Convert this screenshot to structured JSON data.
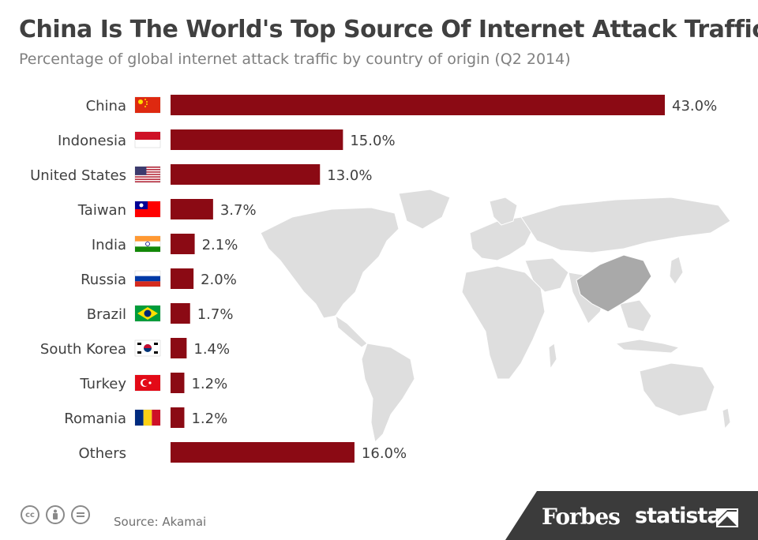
{
  "header": {
    "title": "China Is The World's Top Source Of Internet Attack Traffic",
    "subtitle": "Percentage of global internet attack traffic by country of origin (Q2 2014)"
  },
  "chart_data": {
    "type": "bar",
    "orientation": "horizontal",
    "categories": [
      "China",
      "Indonesia",
      "United States",
      "Taiwan",
      "India",
      "Russia",
      "Brazil",
      "South Korea",
      "Turkey",
      "Romania",
      "Others"
    ],
    "values": [
      43.0,
      15.0,
      13.0,
      3.7,
      2.1,
      2.0,
      1.7,
      1.4,
      1.2,
      1.2,
      16.0
    ],
    "value_labels": [
      "43.0%",
      "15.0%",
      "13.0%",
      "3.7%",
      "2.1%",
      "2.0%",
      "1.7%",
      "1.4%",
      "1.2%",
      "1.2%",
      "16.0%"
    ],
    "flags": [
      "china-flag-icon",
      "indonesia-flag-icon",
      "united-states-flag-icon",
      "taiwan-flag-icon",
      "india-flag-icon",
      "russia-flag-icon",
      "brazil-flag-icon",
      "south-korea-flag-icon",
      "turkey-flag-icon",
      "romania-flag-icon",
      null
    ],
    "xlim": [
      0,
      43
    ],
    "grid": false,
    "legend": "none",
    "bar_color": "#8b0a14"
  },
  "footer": {
    "source": "Source: Akamai",
    "brand_primary": "Forbes",
    "brand_secondary": "statista",
    "license_icons": [
      "creative-commons-icon",
      "attribution-icon",
      "no-derivatives-icon"
    ]
  },
  "colors": {
    "title": "#404040",
    "subtitle": "#808080",
    "map_land": "#dedede",
    "map_highlight": "#a9a9a9",
    "footer_band": "#3b3b3b"
  }
}
